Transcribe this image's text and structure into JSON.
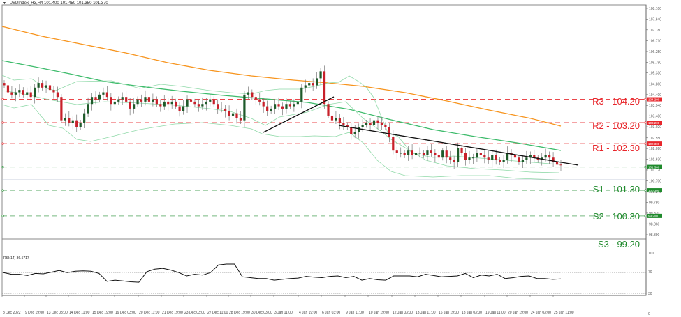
{
  "header": {
    "symbol": "USDIndex_H3,H4",
    "ohlc": "101.400 101.450 101.350 101.370"
  },
  "rsi_panel": {
    "title": "RSI(14) 36.5717",
    "levels": [
      70,
      30
    ],
    "axis_ticks": [
      "100",
      "70",
      "30",
      "0"
    ]
  },
  "levels": [
    {
      "name": "R3",
      "value": 104.2,
      "label": "R3 - 104.20",
      "tag": "104.200",
      "type": "resistance"
    },
    {
      "name": "R2",
      "value": 103.2,
      "label": "R2 - 103.20",
      "tag": "103.200",
      "type": "resistance"
    },
    {
      "name": "R1",
      "value": 102.3,
      "label": "R1 - 102.30",
      "tag": "102.300",
      "type": "resistance"
    },
    {
      "name": "S1",
      "value": 101.3,
      "label": "S1 - 101.30",
      "tag": "101.300",
      "type": "support"
    },
    {
      "name": "S2",
      "value": 100.3,
      "label": "S2 - 100.30",
      "tag": "100.300",
      "type": "support"
    },
    {
      "name": "S3",
      "value": 99.2,
      "label": "S3 - 99.20",
      "tag": "99.200",
      "type": "support"
    }
  ],
  "colors": {
    "resistance": "#e8262b",
    "support": "#1f8a2c",
    "ma_orange": "#f7941d",
    "ma_green": "#3dbb6b",
    "bollinger": "#8fd9a8",
    "bull": "#1e5a2a",
    "bear": "#c8202a",
    "trendline": "#111111"
  },
  "chart_data": {
    "type": "candlestick",
    "title": "USDIndex_H3,H4",
    "ylim": [
      98.39,
      108.1
    ],
    "y_ticks": [
      "108.100",
      "107.640",
      "107.180",
      "106.710",
      "106.250",
      "105.790",
      "105.330",
      "104.860",
      "104.400",
      "103.940",
      "103.480",
      "103.020",
      "102.550",
      "102.090",
      "101.630",
      "101.170",
      "100.700",
      "100.240",
      "99.780",
      "99.320",
      "98.860",
      "98.390"
    ],
    "x_ticks": [
      "8 Dec 2022",
      "9 Dec 19:00",
      "13 Dec 03:00",
      "14 Dec 11:00",
      "15 Dec 19:00",
      "19 Dec 03:00",
      "20 Dec 11:00",
      "21 Dec 19:00",
      "23 Dec 03:00",
      "27 Dec 11:00",
      "28 Dec 19:00",
      "30 Dec 03:00",
      "3 Jan 11:00",
      "4 Jan 19:00",
      "6 Jan 03:00",
      "9 Jan 11:00",
      "10 Jan 19:00",
      "12 Jan 03:00",
      "13 Jan 11:00",
      "16 Jan 19:00",
      "18 Jan 03:00",
      "19 Jan 11:00",
      "20 Jan 19:00",
      "24 Jan 03:00",
      "25 Jan 11:00"
    ],
    "last_price": 101.37,
    "series": [
      {
        "name": "MA orange (slow)",
        "points": [
          [
            0,
            107.7
          ],
          [
            150,
            106.9
          ],
          [
            300,
            106.3
          ],
          [
            450,
            105.4
          ],
          [
            550,
            104.9
          ],
          [
            700,
            104.2
          ],
          [
            800,
            103.5
          ]
        ]
      },
      {
        "name": "MA green",
        "points": [
          [
            0,
            106.0
          ],
          [
            100,
            105.4
          ],
          [
            200,
            104.9
          ],
          [
            300,
            104.5
          ],
          [
            400,
            104.2
          ],
          [
            500,
            103.7
          ],
          [
            600,
            103.0
          ],
          [
            700,
            102.6
          ],
          [
            800,
            102.4
          ]
        ]
      },
      {
        "name": "RSI(14)",
        "values": [
          52,
          48,
          48,
          45,
          50,
          49,
          53,
          57,
          52,
          55,
          56,
          55,
          50,
          31,
          34,
          32,
          30,
          29,
          54,
          60,
          62,
          58,
          52,
          44,
          48,
          46,
          52,
          70,
          72,
          72,
          42,
          40,
          38,
          38,
          34,
          36,
          38,
          39,
          43,
          41,
          40,
          43,
          44,
          40,
          43,
          34,
          38,
          35,
          34,
          44,
          44,
          44,
          42,
          48,
          45,
          42,
          43,
          44,
          50,
          40,
          46,
          44,
          48,
          38,
          40,
          43,
          44,
          38,
          38,
          36,
          37
        ]
      }
    ],
    "annotations": [
      "R3 - 104.20",
      "R2 - 103.20",
      "R1 - 102.30",
      "S1 - 101.30",
      "S2 - 100.30",
      "S3 - 99.20",
      "ascending trendline 30 Dec - 6 Jan",
      "descending trendline 9 Jan - 25 Jan"
    ]
  }
}
